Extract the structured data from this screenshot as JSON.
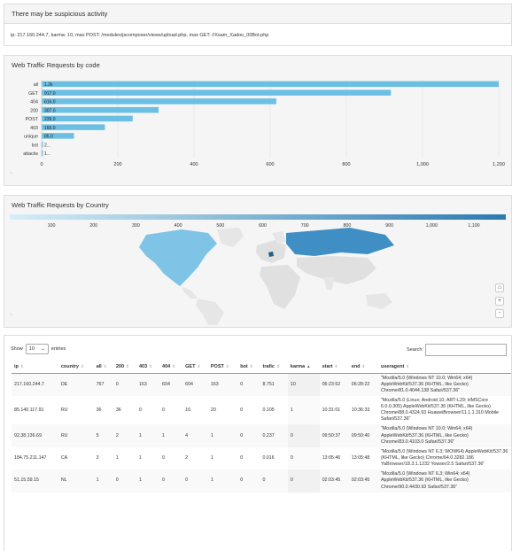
{
  "alert": {
    "title": "There may be suspicious activity",
    "detail": "ip: 217.160.244.7, karma: 10, max POST: /modules/jscomposer/views/upload.php, max GET: //Xsam_Xadoo_00Bot.php"
  },
  "code_chart": {
    "title": "Web Traffic Requests by code",
    "watermark": "~"
  },
  "country_chart": {
    "title": "Web Traffic Requests by Country",
    "legend_ticks": [
      "100",
      "200",
      "300",
      "400",
      "500",
      "600",
      "700",
      "800",
      "900",
      "1,000",
      "1,100"
    ],
    "controls": {
      "home": "⌂",
      "zoom_in": "+",
      "zoom_out": "-"
    },
    "colors": {
      "low": "#d6eef8",
      "high": "#2b7bb0",
      "land": "#e8e8e8"
    }
  },
  "chart_data": {
    "type": "bar",
    "orientation": "horizontal",
    "categories": [
      "all",
      "GET",
      "404",
      "200",
      "POST",
      "403",
      "unique",
      "bot",
      "attacks"
    ],
    "values": [
      1200,
      917,
      616,
      307,
      239,
      166,
      85,
      2,
      1
    ],
    "data_labels": [
      "1.2k",
      "917.0",
      "616.0",
      "307.0",
      "239.0",
      "166.0",
      "85.0",
      "2...",
      "1..."
    ],
    "xlim": [
      0,
      1200
    ],
    "xticks": [
      "0",
      "200",
      "400",
      "600",
      "800",
      "1,000",
      "1,200"
    ],
    "grid": true,
    "bar_color": "#6bbfe3",
    "title": "Web Traffic Requests by code"
  },
  "table": {
    "show_label": "Show",
    "entries_value": "10",
    "entries_label": "entries",
    "search_label": "Search:",
    "search_value": "",
    "columns": [
      "ip",
      "country",
      "all",
      "200",
      "403",
      "404",
      "GET",
      "POST",
      "bot",
      "trafic",
      "karma",
      "start",
      "end",
      "useragent"
    ],
    "sorted_column": "karma",
    "rows": [
      [
        "217.160.244.7",
        "DE",
        "767",
        "0",
        "163",
        "604",
        "604",
        "163",
        "0",
        "8.751",
        "10",
        "06:23:52",
        "06:28:22",
        "\"Mozilla/5.0 (Windows NT 10.0; Win64; x64) AppleWebKit/537.36 (KHTML, like Gecko) Chrome/81.0.4044.138 Safari/537.36\""
      ],
      [
        "85.140.117.91",
        "RU",
        "36",
        "36",
        "0",
        "0",
        "16",
        "20",
        "0",
        "0.105",
        "1",
        "10:31:01",
        "10:36:33",
        "\"Mozilla/5.0 (Linux; Android 10; ART-L29; HMSCore 6.0.0.305) AppleWebKit/537.36 (KHTML, like Gecko) Chrome/88.0.4324.93 HuaweiBrowser/11.1.1.310 Mobile Safari/537.36\""
      ],
      [
        "92.38.136.69",
        "RU",
        "5",
        "2",
        "1",
        "1",
        "4",
        "1",
        "0",
        "0.237",
        "0",
        "09:50:37",
        "09:50:40",
        "\"Mozilla/5.0 (Windows NT 10.0; Win64; x64) AppleWebKit/537.36 (KHTML, like Gecko) Chrome/83.0.4103.0 Safari/537.36\""
      ],
      [
        "184.75.211.147",
        "CA",
        "3",
        "1",
        "1",
        "0",
        "2",
        "1",
        "0",
        "0.016",
        "0",
        "13:05:46",
        "13:05:48",
        "\"Mozilla/5.0 (Windows NT 6.3; WOW64) AppleWebKit/537.36 (KHTML, like Gecko) Chrome/64.0.3282.186 YaBrowser/18.3.1.1232 Yowser/2.5 Safari/537.36\""
      ],
      [
        "51.15.59.15",
        "NL",
        "1",
        "0",
        "1",
        "0",
        "0",
        "1",
        "0",
        "0",
        "0",
        "02:03:45",
        "02:03:45",
        "\"Mozilla/5.0 (Windows NT 6.3; Win64; x64) AppleWebKit/537.36 (KHTML, like Gecko) Chrome/90.0.4430.93 Safari/537.36\""
      ]
    ]
  }
}
